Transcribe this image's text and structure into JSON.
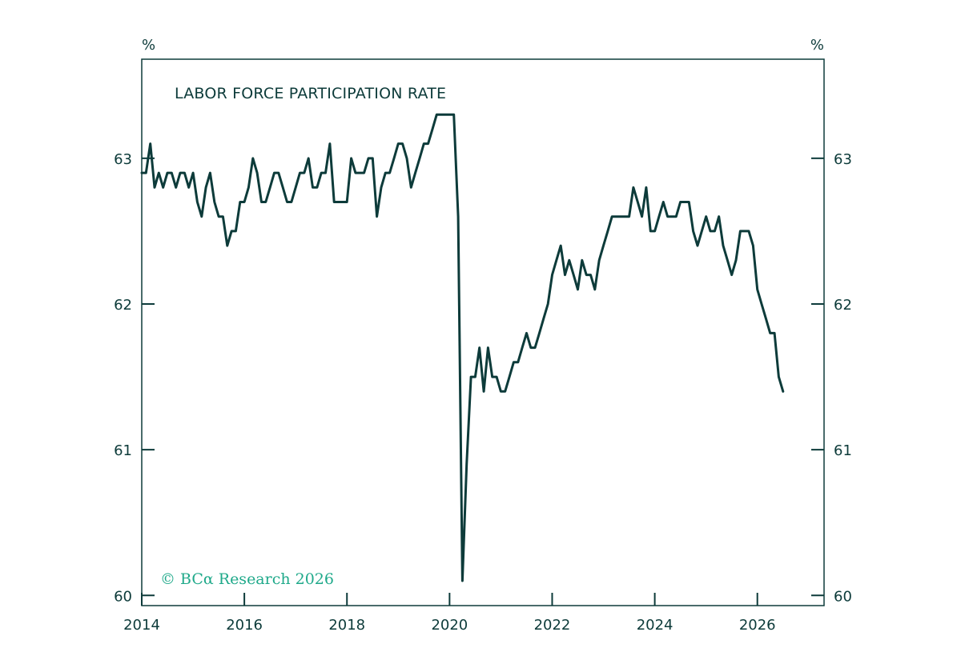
{
  "chart_data": {
    "type": "line",
    "title": "LABOR FORCE PARTICIPATION RATE",
    "left_unit": "%",
    "right_unit": "%",
    "watermark": "© BCα Research 2026",
    "x_tick_labels": [
      "2014",
      "2016",
      "2018",
      "2020",
      "2022",
      "2024",
      "2026"
    ],
    "y_tick_labels": [
      "60",
      "61",
      "62",
      "63"
    ],
    "y_ticks": [
      60,
      61,
      62,
      63
    ],
    "xlim": [
      2014,
      2027.3
    ],
    "ylim": [
      59.93,
      63.68
    ],
    "grid": false,
    "colors": {
      "line": "#0d3b3a",
      "axis": "#0d3b3a",
      "watermark": "#1fa98a"
    },
    "series": [
      {
        "x": [
          2014.0,
          2014.083,
          2014.167,
          2014.25,
          2014.333,
          2014.417,
          2014.5,
          2014.583,
          2014.667,
          2014.75,
          2014.833,
          2014.917,
          2015.0,
          2015.083,
          2015.167,
          2015.25,
          2015.333,
          2015.417,
          2015.5,
          2015.583,
          2015.667,
          2015.75,
          2015.833,
          2015.917,
          2016.0,
          2016.083,
          2016.167,
          2016.25,
          2016.333,
          2016.417,
          2016.5,
          2016.583,
          2016.667,
          2016.75,
          2016.833,
          2016.917,
          2017.0,
          2017.083,
          2017.167,
          2017.25,
          2017.333,
          2017.417,
          2017.5,
          2017.583,
          2017.667,
          2017.75,
          2017.833,
          2017.917,
          2018.0,
          2018.083,
          2018.167,
          2018.25,
          2018.333,
          2018.417,
          2018.5,
          2018.583,
          2018.667,
          2018.75,
          2018.833,
          2018.917,
          2019.0,
          2019.083,
          2019.167,
          2019.25,
          2019.333,
          2019.417,
          2019.5,
          2019.583,
          2019.667,
          2019.75,
          2019.833,
          2019.917,
          2020.0,
          2020.083,
          2020.167,
          2020.25,
          2020.333,
          2020.417,
          2020.5,
          2020.583,
          2020.667,
          2020.75,
          2020.833,
          2020.917,
          2021.0,
          2021.083,
          2021.167,
          2021.25,
          2021.333,
          2021.417,
          2021.5,
          2021.583,
          2021.667,
          2021.75,
          2021.833,
          2021.917,
          2022.0,
          2022.083,
          2022.167,
          2022.25,
          2022.333,
          2022.417,
          2022.5,
          2022.583,
          2022.667,
          2022.75,
          2022.833,
          2022.917,
          2023.0,
          2023.083,
          2023.167,
          2023.25,
          2023.333,
          2023.417,
          2023.5,
          2023.583,
          2023.667,
          2023.75,
          2023.833,
          2023.917,
          2024.0,
          2024.083,
          2024.167,
          2024.25,
          2024.333,
          2024.417,
          2024.5,
          2024.583,
          2024.667,
          2024.75,
          2024.833,
          2024.917,
          2025.0,
          2025.083,
          2025.167,
          2025.25,
          2025.333,
          2025.417,
          2025.5,
          2025.583,
          2025.667,
          2025.75,
          2025.833,
          2025.917,
          2026.0,
          2026.083,
          2026.167,
          2026.25,
          2026.333,
          2026.417,
          2026.5
        ],
        "values": [
          62.9,
          62.9,
          63.1,
          62.8,
          62.9,
          62.8,
          62.9,
          62.9,
          62.8,
          62.9,
          62.9,
          62.8,
          62.9,
          62.7,
          62.6,
          62.8,
          62.9,
          62.7,
          62.6,
          62.6,
          62.4,
          62.5,
          62.5,
          62.7,
          62.7,
          62.8,
          63.0,
          62.9,
          62.7,
          62.7,
          62.8,
          62.9,
          62.9,
          62.8,
          62.7,
          62.7,
          62.8,
          62.9,
          62.9,
          63.0,
          62.8,
          62.8,
          62.9,
          62.9,
          63.1,
          62.7,
          62.7,
          62.7,
          62.7,
          63.0,
          62.9,
          62.9,
          62.9,
          63.0,
          63.0,
          62.6,
          62.8,
          62.9,
          62.9,
          63.0,
          63.1,
          63.1,
          63.0,
          62.8,
          62.9,
          63.0,
          63.1,
          63.1,
          63.2,
          63.3,
          63.3,
          63.3,
          63.3,
          63.3,
          62.6,
          60.1,
          60.9,
          61.5,
          61.5,
          61.7,
          61.4,
          61.7,
          61.5,
          61.5,
          61.4,
          61.4,
          61.5,
          61.6,
          61.6,
          61.7,
          61.8,
          61.7,
          61.7,
          61.8,
          61.9,
          62.0,
          62.2,
          62.3,
          62.4,
          62.2,
          62.3,
          62.2,
          62.1,
          62.3,
          62.2,
          62.2,
          62.1,
          62.3,
          62.4,
          62.5,
          62.6,
          62.6,
          62.6,
          62.6,
          62.6,
          62.8,
          62.7,
          62.6,
          62.8,
          62.5,
          62.5,
          62.6,
          62.7,
          62.6,
          62.6,
          62.6,
          62.7,
          62.7,
          62.7,
          62.5,
          62.4,
          62.5,
          62.6,
          62.5,
          62.5,
          62.6,
          62.4,
          62.3,
          62.2,
          62.3,
          62.5,
          62.5,
          62.5,
          62.4,
          62.1,
          62.0,
          61.9,
          61.8,
          61.8,
          61.5,
          61.4
        ]
      }
    ]
  }
}
